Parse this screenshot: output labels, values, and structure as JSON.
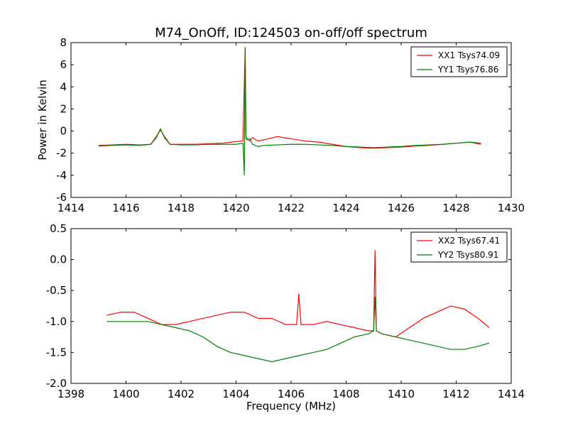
{
  "figure": {
    "title": "M74_OnOff, ID:124503 on-off/off spectrum",
    "ylabel": "Power in Kelvin",
    "xlabel": "Frequency (MHz)"
  },
  "chart_data": [
    {
      "type": "line",
      "title": "M74_OnOff, ID:124503 on-off/off spectrum",
      "ylabel": "Power in Kelvin",
      "xlabel": "",
      "xlim": [
        1414,
        1430
      ],
      "ylim": [
        -6,
        8
      ],
      "xticks": [
        1414,
        1416,
        1418,
        1420,
        1422,
        1424,
        1426,
        1428,
        1430
      ],
      "yticks": [
        -6,
        -4,
        -2,
        0,
        2,
        4,
        6,
        8
      ],
      "grid": false,
      "legend_position": "top-right",
      "series": [
        {
          "name": "XX1 Tsys74.09",
          "color": "#ff0000",
          "x": [
            1415.0,
            1415.5,
            1416.0,
            1416.5,
            1416.9,
            1417.1,
            1417.25,
            1417.4,
            1417.6,
            1418.0,
            1418.5,
            1419.0,
            1419.5,
            1420.0,
            1420.25,
            1420.33,
            1420.36,
            1420.4,
            1420.5,
            1420.6,
            1420.8,
            1421.0,
            1421.5,
            1422.0,
            1422.5,
            1423.0,
            1423.5,
            1424.0,
            1424.5,
            1425.0,
            1425.5,
            1426.0,
            1426.5,
            1427.0,
            1427.5,
            1428.0,
            1428.5,
            1428.9
          ],
          "y": [
            -1.3,
            -1.25,
            -1.2,
            -1.25,
            -1.2,
            -0.5,
            0.1,
            -0.5,
            -1.2,
            -1.2,
            -1.2,
            -1.15,
            -1.1,
            -0.95,
            -0.9,
            7.5,
            -0.5,
            -0.7,
            -0.9,
            -0.6,
            -0.9,
            -0.8,
            -0.5,
            -0.7,
            -0.9,
            -1.0,
            -1.2,
            -1.4,
            -1.5,
            -1.55,
            -1.5,
            -1.45,
            -1.35,
            -1.3,
            -1.2,
            -1.1,
            -1.0,
            -1.2
          ]
        },
        {
          "name": "YY1 Tsys76.86",
          "color": "#008000",
          "x": [
            1415.0,
            1415.5,
            1416.0,
            1416.5,
            1416.9,
            1417.1,
            1417.25,
            1417.4,
            1417.6,
            1418.0,
            1418.5,
            1419.0,
            1419.5,
            1420.0,
            1420.25,
            1420.3,
            1420.33,
            1420.36,
            1420.4,
            1420.5,
            1420.6,
            1420.8,
            1421.0,
            1421.5,
            1422.0,
            1422.5,
            1423.0,
            1423.5,
            1424.0,
            1424.5,
            1425.0,
            1425.5,
            1426.0,
            1426.5,
            1427.0,
            1427.5,
            1428.0,
            1428.5,
            1428.9
          ],
          "y": [
            -1.35,
            -1.3,
            -1.25,
            -1.3,
            -1.2,
            -0.6,
            0.2,
            -0.6,
            -1.2,
            -1.25,
            -1.25,
            -1.2,
            -1.2,
            -1.2,
            -1.1,
            -4.0,
            7.6,
            -0.6,
            -0.8,
            -0.7,
            -1.2,
            -1.4,
            -1.3,
            -1.25,
            -1.2,
            -1.2,
            -1.25,
            -1.3,
            -1.4,
            -1.45,
            -1.5,
            -1.45,
            -1.4,
            -1.3,
            -1.25,
            -1.2,
            -1.1,
            -1.0,
            -1.1
          ]
        }
      ]
    },
    {
      "type": "line",
      "title": "",
      "ylabel": "",
      "xlabel": "Frequency (MHz)",
      "xlim": [
        1398,
        1414
      ],
      "ylim": [
        -2.0,
        0.5
      ],
      "xticks": [
        1398,
        1400,
        1402,
        1404,
        1406,
        1408,
        1410,
        1412,
        1414
      ],
      "yticks": [
        -2.0,
        -1.5,
        -1.0,
        -0.5,
        0.0,
        0.5
      ],
      "grid": false,
      "legend_position": "top-right",
      "series": [
        {
          "name": "XX2 Tsys67.41",
          "color": "#ff0000",
          "x": [
            1399.3,
            1399.8,
            1400.3,
            1400.8,
            1401.3,
            1401.8,
            1402.3,
            1402.8,
            1403.3,
            1403.8,
            1404.3,
            1404.8,
            1405.3,
            1405.8,
            1406.2,
            1406.28,
            1406.36,
            1406.8,
            1407.3,
            1407.8,
            1408.3,
            1408.8,
            1409.0,
            1409.05,
            1409.1,
            1409.3,
            1409.8,
            1410.3,
            1410.8,
            1411.3,
            1411.8,
            1412.3,
            1412.8,
            1413.2
          ],
          "y": [
            -0.9,
            -0.85,
            -0.85,
            -0.95,
            -1.05,
            -1.05,
            -1.0,
            -0.95,
            -0.9,
            -0.85,
            -0.85,
            -0.95,
            -0.95,
            -1.05,
            -1.05,
            -0.55,
            -1.05,
            -1.05,
            -1.0,
            -1.05,
            -1.1,
            -1.15,
            -1.15,
            0.15,
            -1.15,
            -1.2,
            -1.25,
            -1.1,
            -0.95,
            -0.85,
            -0.75,
            -0.8,
            -0.95,
            -1.1
          ]
        },
        {
          "name": "YY2 Tsys80.91",
          "color": "#008000",
          "x": [
            1399.3,
            1399.8,
            1400.3,
            1400.8,
            1401.3,
            1401.8,
            1402.3,
            1402.8,
            1403.3,
            1403.8,
            1404.3,
            1404.8,
            1405.3,
            1405.8,
            1406.3,
            1406.8,
            1407.3,
            1407.8,
            1408.3,
            1408.8,
            1409.0,
            1409.05,
            1409.1,
            1409.3,
            1409.8,
            1410.3,
            1410.8,
            1411.3,
            1411.8,
            1412.3,
            1412.8,
            1413.2
          ],
          "y": [
            -1.0,
            -1.0,
            -1.0,
            -1.0,
            -1.05,
            -1.1,
            -1.15,
            -1.25,
            -1.4,
            -1.5,
            -1.55,
            -1.6,
            -1.65,
            -1.6,
            -1.55,
            -1.5,
            -1.45,
            -1.35,
            -1.25,
            -1.2,
            -1.15,
            -0.6,
            -1.15,
            -1.2,
            -1.25,
            -1.3,
            -1.35,
            -1.4,
            -1.45,
            -1.45,
            -1.4,
            -1.35
          ]
        }
      ]
    }
  ]
}
